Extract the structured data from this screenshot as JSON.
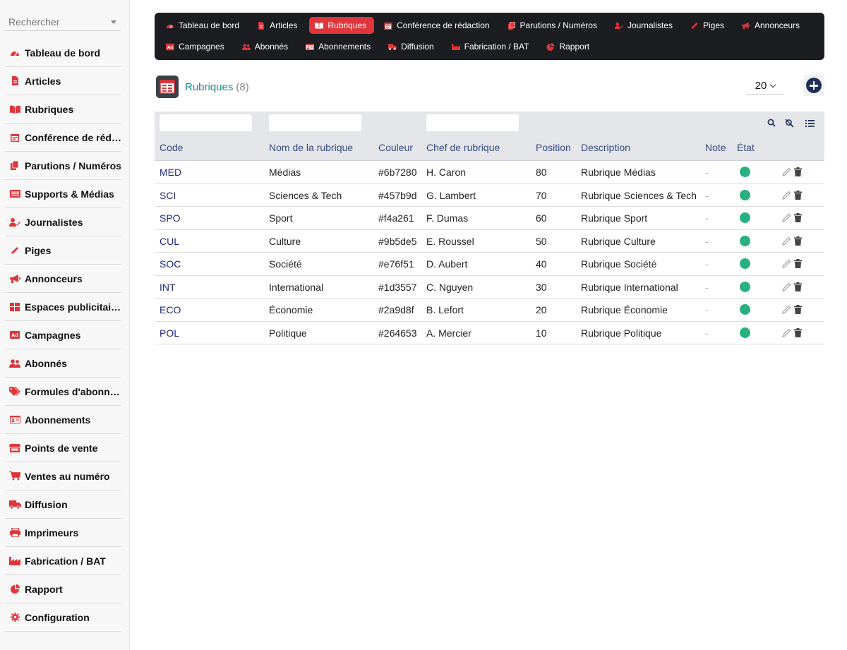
{
  "sidebar": {
    "search_placeholder": "Rechercher",
    "items": [
      {
        "label": "Tableau de bord",
        "icon": "dashboard-icon"
      },
      {
        "label": "Articles",
        "icon": "file-icon"
      },
      {
        "label": "Rubriques",
        "icon": "book-open-icon"
      },
      {
        "label": "Conférence de rédac…",
        "icon": "calendar-icon"
      },
      {
        "label": "Parutions / Numéros",
        "icon": "copy-icon"
      },
      {
        "label": "Supports & Médias",
        "icon": "rectangle-list-icon"
      },
      {
        "label": "Journalistes",
        "icon": "user-pen-icon"
      },
      {
        "label": "Piges",
        "icon": "pencil-icon"
      },
      {
        "label": "Annonceurs",
        "icon": "bullhorn-icon"
      },
      {
        "label": "Espaces publicitaires",
        "icon": "grid-icon"
      },
      {
        "label": "Campagnes",
        "icon": "ad-icon"
      },
      {
        "label": "Abonnés",
        "icon": "users-icon"
      },
      {
        "label": "Formules d'abonne…",
        "icon": "tags-icon"
      },
      {
        "label": "Abonnements",
        "icon": "id-card-icon"
      },
      {
        "label": "Points de vente",
        "icon": "store-icon"
      },
      {
        "label": "Ventes au numéro",
        "icon": "cart-icon"
      },
      {
        "label": "Diffusion",
        "icon": "truck-icon"
      },
      {
        "label": "Imprimeurs",
        "icon": "printer-icon"
      },
      {
        "label": "Fabrication / BAT",
        "icon": "factory-icon"
      },
      {
        "label": "Rapport",
        "icon": "pie-chart-icon"
      },
      {
        "label": "Configuration",
        "icon": "gear-icon"
      }
    ]
  },
  "topnav": {
    "row1": [
      {
        "label": "Tableau de bord",
        "icon": "dashboard-icon"
      },
      {
        "label": "Articles",
        "icon": "file-icon"
      },
      {
        "label": "Rubriques",
        "icon": "book-open-icon",
        "active": true
      },
      {
        "label": "Conférence de rédaction",
        "icon": "calendar-icon"
      },
      {
        "label": "Parutions / Numéros",
        "icon": "copy-icon"
      },
      {
        "label": "Journalistes",
        "icon": "user-pen-icon"
      },
      {
        "label": "Piges",
        "icon": "pencil-icon"
      },
      {
        "label": "Annonceurs",
        "icon": "bullhorn-icon"
      }
    ],
    "row2": [
      {
        "label": "Campagnes",
        "icon": "ad-icon"
      },
      {
        "label": "Abonnés",
        "icon": "users-icon"
      },
      {
        "label": "Abonnements",
        "icon": "id-card-icon"
      },
      {
        "label": "Diffusion",
        "icon": "truck-icon"
      },
      {
        "label": "Fabrication / BAT",
        "icon": "factory-icon"
      },
      {
        "label": "Rapport",
        "icon": "pie-chart-icon"
      }
    ]
  },
  "page": {
    "title": "Rubriques",
    "count": "(8)",
    "per_page": "20"
  },
  "table": {
    "headers": {
      "code": "Code",
      "nom": "Nom de la rubrique",
      "couleur": "Couleur",
      "chef": "Chef de rubrique",
      "position": "Position",
      "description": "Description",
      "note": "Note",
      "etat": "État"
    },
    "rows": [
      {
        "code": "MED",
        "nom": "Médias",
        "couleur": "#6b7280",
        "chef": "H. Caron",
        "position": "80",
        "description": "Rubrique Médias",
        "note": "-"
      },
      {
        "code": "SCI",
        "nom": "Sciences & Tech",
        "couleur": "#457b9d",
        "chef": "G. Lambert",
        "position": "70",
        "description": "Rubrique Sciences & Tech",
        "note": "-"
      },
      {
        "code": "SPO",
        "nom": "Sport",
        "couleur": "#f4a261",
        "chef": "F. Dumas",
        "position": "60",
        "description": "Rubrique Sport",
        "note": "-"
      },
      {
        "code": "CUL",
        "nom": "Culture",
        "couleur": "#9b5de5",
        "chef": "E. Roussel",
        "position": "50",
        "description": "Rubrique Culture",
        "note": "-"
      },
      {
        "code": "SOC",
        "nom": "Société",
        "couleur": "#e76f51",
        "chef": "D. Aubert",
        "position": "40",
        "description": "Rubrique Société",
        "note": "-"
      },
      {
        "code": "INT",
        "nom": "International",
        "couleur": "#1d3557",
        "chef": "C. Nguyen",
        "position": "30",
        "description": "Rubrique International",
        "note": "-"
      },
      {
        "code": "ECO",
        "nom": "Économie",
        "couleur": "#2a9d8f",
        "chef": "B. Lefort",
        "position": "20",
        "description": "Rubrique Économie",
        "note": "-"
      },
      {
        "code": "POL",
        "nom": "Politique",
        "couleur": "#264653",
        "chef": "A. Mercier",
        "position": "10",
        "description": "Rubrique Politique",
        "note": "-"
      }
    ]
  },
  "colors": {
    "accent": "#e0353b",
    "nav_bg": "#1c1d20",
    "title": "#1a8b8e",
    "status_active": "#28b07e",
    "link": "#1f2a78"
  }
}
